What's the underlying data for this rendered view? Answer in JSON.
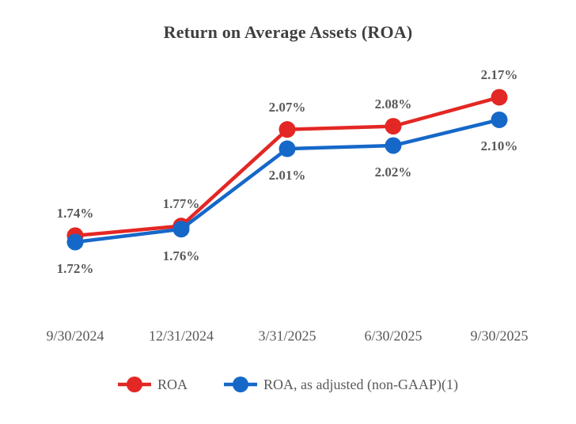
{
  "title": "Return on Average Assets (ROA)",
  "chart_data": {
    "type": "line",
    "title": "Return on Average Assets (ROA)",
    "xlabel": "",
    "ylabel": "",
    "categories": [
      "9/30/2024",
      "12/31/2024",
      "3/31/2025",
      "6/30/2025",
      "9/30/2025"
    ],
    "series": [
      {
        "name": "ROA",
        "color": "#e32724",
        "values": [
          1.74,
          1.77,
          2.07,
          2.08,
          2.17
        ],
        "labels": [
          "1.74%",
          "1.77%",
          "2.07%",
          "2.08%",
          "2.17%"
        ],
        "label_position": "above"
      },
      {
        "name": "ROA, as adjusted (non-GAAP)(1)",
        "color": "#1568c8",
        "values": [
          1.72,
          1.76,
          2.01,
          2.02,
          2.1
        ],
        "labels": [
          "1.72%",
          "1.76%",
          "2.01%",
          "2.02%",
          "2.10%"
        ],
        "label_position": "below"
      }
    ],
    "ylim": [
      1.65,
      2.25
    ],
    "grid": false,
    "axis_lines": false,
    "marker": "circle",
    "legend_position": "bottom",
    "colors": {
      "title_text": "#3f3f3f",
      "label_text": "#595959",
      "background": "#ffffff"
    }
  }
}
